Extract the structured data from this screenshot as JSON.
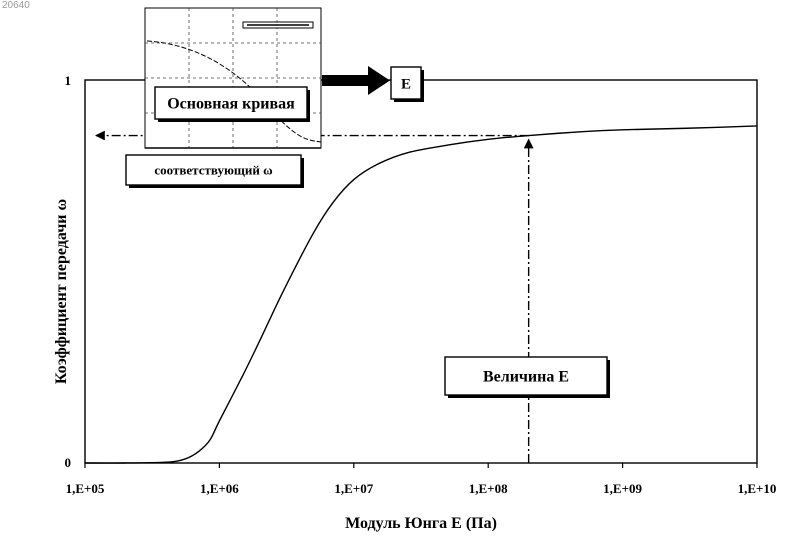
{
  "corner_id": "20640",
  "chart_data": {
    "type": "line",
    "x_scale": "log",
    "xlabel": "Модуль Юнга E (Па)",
    "ylabel": "Коэффициент передачи ω",
    "x_ticks": [
      "1,E+05",
      "1,E+06",
      "1,E+07",
      "1,E+08",
      "1,E+09",
      "1,E+10"
    ],
    "y_ticks": [
      "0",
      "1"
    ],
    "xlim": [
      100000,
      10000000000
    ],
    "ylim": [
      0,
      1
    ],
    "grid": false,
    "series": [
      {
        "x": [
          100000,
          200000,
          400000,
          550000,
          700000,
          850000,
          1000000,
          1500000,
          2000000,
          3000000,
          5000000,
          7000000,
          10000000,
          15000000,
          25000000,
          50000000,
          100000000,
          200000000,
          500000000,
          1000000000,
          3000000000,
          10000000000
        ],
        "y": [
          0.0,
          0.0,
          0.002,
          0.01,
          0.03,
          0.06,
          0.11,
          0.23,
          0.32,
          0.45,
          0.6,
          0.68,
          0.74,
          0.78,
          0.81,
          0.83,
          0.845,
          0.855,
          0.865,
          0.87,
          0.874,
          0.88
        ]
      }
    ],
    "annotations": {
      "inset_label": "Основная кривая",
      "e_box": "E",
      "omega_label": "соответствующий ω",
      "value_label": "Величина E",
      "marked_e": 200000000,
      "marked_omega": 0.855
    }
  }
}
